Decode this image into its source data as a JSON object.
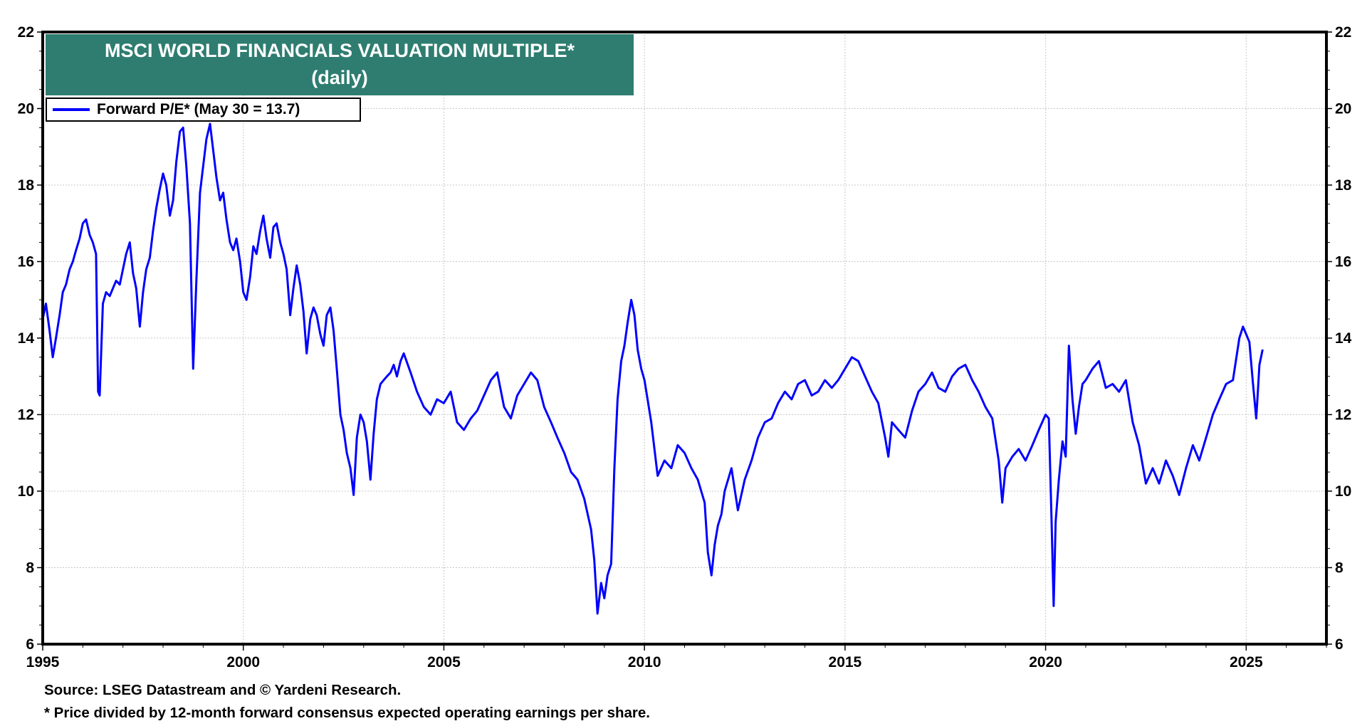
{
  "chart_data": {
    "type": "line",
    "title": "MSCI WORLD FINANCIALS VALUATION MULTIPLE*",
    "subtitle": "(daily)",
    "xlabel": "",
    "ylabel": "",
    "xlim": [
      1995,
      2027
    ],
    "ylim": [
      6,
      22
    ],
    "x_ticks": [
      1995,
      2000,
      2005,
      2010,
      2015,
      2020,
      2025
    ],
    "x_tick_labels": [
      "1995",
      "2000",
      "2005",
      "2010",
      "2015",
      "2020",
      "2025"
    ],
    "y_ticks": [
      6,
      8,
      10,
      12,
      14,
      16,
      18,
      20,
      22
    ],
    "y_tick_labels": [
      "6",
      "8",
      "10",
      "12",
      "14",
      "16",
      "18",
      "20",
      "22"
    ],
    "y_axis_sides": [
      "left",
      "right"
    ],
    "grid": true,
    "legend_position": "top-left",
    "series": [
      {
        "name": "Forward P/E* (May 30 = 13.7)",
        "color": "#0000ff",
        "x": [
          1995.0,
          1995.08,
          1995.17,
          1995.25,
          1995.33,
          1995.42,
          1995.5,
          1995.58,
          1995.67,
          1995.75,
          1995.83,
          1995.92,
          1996.0,
          1996.08,
          1996.17,
          1996.25,
          1996.33,
          1996.38,
          1996.42,
          1996.5,
          1996.58,
          1996.67,
          1996.75,
          1996.83,
          1996.92,
          1997.0,
          1997.08,
          1997.17,
          1997.25,
          1997.33,
          1997.42,
          1997.5,
          1997.58,
          1997.67,
          1997.75,
          1997.83,
          1997.92,
          1998.0,
          1998.08,
          1998.17,
          1998.25,
          1998.33,
          1998.42,
          1998.5,
          1998.58,
          1998.67,
          1998.75,
          1998.83,
          1998.92,
          1999.0,
          1999.08,
          1999.17,
          1999.25,
          1999.33,
          1999.42,
          1999.5,
          1999.58,
          1999.67,
          1999.75,
          1999.83,
          1999.92,
          2000.0,
          2000.08,
          2000.17,
          2000.25,
          2000.33,
          2000.42,
          2000.5,
          2000.58,
          2000.67,
          2000.75,
          2000.83,
          2000.92,
          2001.0,
          2001.08,
          2001.17,
          2001.25,
          2001.33,
          2001.42,
          2001.5,
          2001.58,
          2001.67,
          2001.75,
          2001.83,
          2001.92,
          2002.0,
          2002.08,
          2002.17,
          2002.25,
          2002.33,
          2002.42,
          2002.5,
          2002.58,
          2002.67,
          2002.75,
          2002.83,
          2002.92,
          2003.0,
          2003.08,
          2003.17,
          2003.25,
          2003.33,
          2003.42,
          2003.5,
          2003.58,
          2003.67,
          2003.75,
          2003.83,
          2003.92,
          2004.0,
          2004.17,
          2004.33,
          2004.5,
          2004.67,
          2004.83,
          2005.0,
          2005.17,
          2005.33,
          2005.5,
          2005.67,
          2005.83,
          2006.0,
          2006.17,
          2006.33,
          2006.5,
          2006.67,
          2006.83,
          2007.0,
          2007.17,
          2007.33,
          2007.5,
          2007.67,
          2007.83,
          2008.0,
          2008.17,
          2008.33,
          2008.5,
          2008.67,
          2008.75,
          2008.83,
          2008.92,
          2009.0,
          2009.08,
          2009.17,
          2009.25,
          2009.33,
          2009.42,
          2009.5,
          2009.58,
          2009.67,
          2009.75,
          2009.83,
          2009.92,
          2010.0,
          2010.17,
          2010.33,
          2010.5,
          2010.67,
          2010.83,
          2011.0,
          2011.17,
          2011.33,
          2011.5,
          2011.58,
          2011.67,
          2011.75,
          2011.83,
          2011.92,
          2012.0,
          2012.17,
          2012.33,
          2012.5,
          2012.67,
          2012.83,
          2013.0,
          2013.17,
          2013.33,
          2013.5,
          2013.67,
          2013.83,
          2014.0,
          2014.17,
          2014.33,
          2014.5,
          2014.67,
          2014.83,
          2015.0,
          2015.17,
          2015.33,
          2015.5,
          2015.67,
          2015.83,
          2016.0,
          2016.08,
          2016.17,
          2016.33,
          2016.5,
          2016.67,
          2016.83,
          2017.0,
          2017.17,
          2017.33,
          2017.5,
          2017.67,
          2017.83,
          2018.0,
          2018.17,
          2018.33,
          2018.5,
          2018.67,
          2018.83,
          2018.92,
          2019.0,
          2019.17,
          2019.33,
          2019.5,
          2019.67,
          2019.83,
          2020.0,
          2020.08,
          2020.15,
          2020.2,
          2020.25,
          2020.33,
          2020.42,
          2020.5,
          2020.58,
          2020.67,
          2020.75,
          2020.83,
          2020.92,
          2021.0,
          2021.17,
          2021.33,
          2021.5,
          2021.67,
          2021.83,
          2022.0,
          2022.17,
          2022.33,
          2022.5,
          2022.67,
          2022.83,
          2023.0,
          2023.17,
          2023.33,
          2023.5,
          2023.67,
          2023.83,
          2024.0,
          2024.17,
          2024.33,
          2024.5,
          2024.67,
          2024.83,
          2024.92,
          2025.0,
          2025.08,
          2025.17,
          2025.25,
          2025.29,
          2025.33,
          2025.41
        ],
        "values": [
          14.5,
          14.9,
          14.2,
          13.5,
          14.0,
          14.6,
          15.2,
          15.4,
          15.8,
          16.0,
          16.3,
          16.6,
          17.0,
          17.1,
          16.7,
          16.5,
          16.2,
          12.6,
          12.5,
          14.9,
          15.2,
          15.1,
          15.3,
          15.5,
          15.4,
          15.8,
          16.2,
          16.5,
          15.7,
          15.3,
          14.3,
          15.2,
          15.8,
          16.1,
          16.8,
          17.4,
          17.9,
          18.3,
          18.0,
          17.2,
          17.6,
          18.6,
          19.4,
          19.5,
          18.5,
          17.0,
          13.2,
          15.5,
          17.8,
          18.5,
          19.2,
          19.6,
          18.9,
          18.2,
          17.6,
          17.8,
          17.1,
          16.5,
          16.3,
          16.6,
          16.0,
          15.2,
          15.0,
          15.6,
          16.4,
          16.2,
          16.8,
          17.2,
          16.6,
          16.1,
          16.9,
          17.0,
          16.5,
          16.2,
          15.8,
          14.6,
          15.3,
          15.9,
          15.4,
          14.7,
          13.6,
          14.5,
          14.8,
          14.6,
          14.1,
          13.8,
          14.6,
          14.8,
          14.2,
          13.2,
          12.0,
          11.6,
          11.0,
          10.6,
          9.9,
          11.4,
          12.0,
          11.8,
          11.3,
          10.3,
          11.5,
          12.4,
          12.8,
          12.9,
          13.0,
          13.1,
          13.3,
          13.0,
          13.4,
          13.6,
          13.1,
          12.6,
          12.2,
          12.0,
          12.4,
          12.3,
          12.6,
          11.8,
          11.6,
          11.9,
          12.1,
          12.5,
          12.9,
          13.1,
          12.2,
          11.9,
          12.5,
          12.8,
          13.1,
          12.9,
          12.2,
          11.8,
          11.4,
          11.0,
          10.5,
          10.3,
          9.8,
          9.0,
          8.2,
          6.8,
          7.6,
          7.2,
          7.8,
          8.1,
          10.6,
          12.4,
          13.4,
          13.8,
          14.4,
          15.0,
          14.6,
          13.7,
          13.2,
          12.9,
          11.8,
          10.4,
          10.8,
          10.6,
          11.2,
          11.0,
          10.6,
          10.3,
          9.7,
          8.4,
          7.8,
          8.6,
          9.1,
          9.4,
          10.0,
          10.6,
          9.5,
          10.3,
          10.8,
          11.4,
          11.8,
          11.9,
          12.3,
          12.6,
          12.4,
          12.8,
          12.9,
          12.5,
          12.6,
          12.9,
          12.7,
          12.9,
          13.2,
          13.5,
          13.4,
          13.0,
          12.6,
          12.3,
          11.4,
          10.9,
          11.8,
          11.6,
          11.4,
          12.1,
          12.6,
          12.8,
          13.1,
          12.7,
          12.6,
          13.0,
          13.2,
          13.3,
          12.9,
          12.6,
          12.2,
          11.9,
          10.8,
          9.7,
          10.6,
          10.9,
          11.1,
          10.8,
          11.2,
          11.6,
          12.0,
          11.9,
          9.2,
          7.0,
          9.2,
          10.3,
          11.3,
          10.9,
          13.8,
          12.4,
          11.5,
          12.2,
          12.8,
          12.9,
          13.2,
          13.4,
          12.7,
          12.8,
          12.6,
          12.9,
          11.8,
          11.2,
          10.2,
          10.6,
          10.2,
          10.8,
          10.4,
          9.9,
          10.6,
          11.2,
          10.8,
          11.4,
          12.0,
          12.4,
          12.8,
          12.9,
          14.0,
          14.3,
          14.1,
          13.9,
          12.8,
          11.9,
          12.6,
          13.3,
          13.7
        ]
      }
    ]
  },
  "footer": {
    "source": "Source: LSEG Datastream and © Yardeni Research.",
    "note": "* Price divided by 12-month forward consensus expected operating earnings per share."
  }
}
